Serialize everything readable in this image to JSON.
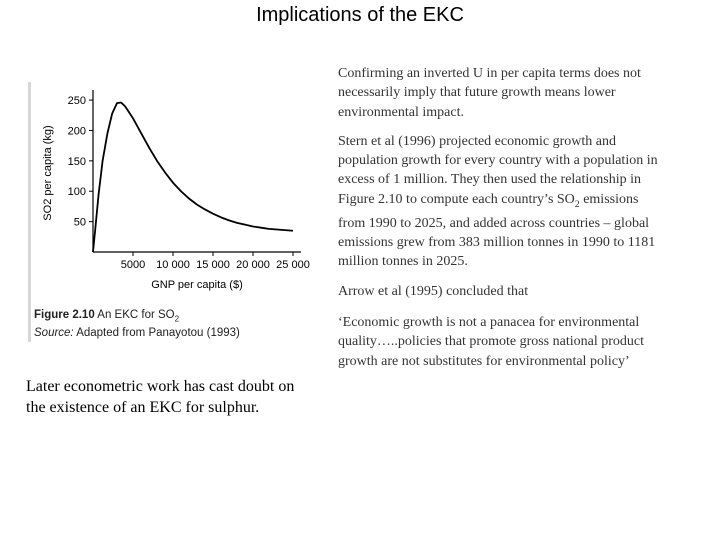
{
  "slide": {
    "title": "Implications of the EKC",
    "para1": "Confirming an inverted U in per capita terms does not necessarily imply that future growth means lower environmental impact.",
    "para2_a": "Stern et al (1996) projected economic growth and population growth for every country with a population in excess of 1 million. They then used the relationship in Figure 2.10 to compute each country’s SO",
    "para2_sub": "2",
    "para2_b": " emissions from 1990 to 2025, and added across countries – global emissions grew from 383 million tonnes in 1990 to 1181 million tonnes in 2025.",
    "para3": "Arrow et al (1995) concluded that",
    "quote": "‘Economic growth is not a panacea for environmental quality…..policies that promote gross national product growth are not substitutes for environmental policy’",
    "left_text": "Later econometric work has cast doubt on the existence of an EKC for sulphur."
  },
  "figure": {
    "caption_label": "Figure 2.10",
    "caption_title": "An EKC for SO",
    "caption_title_sub": "2",
    "source_label": "Source:",
    "source_text": "Adapted from Panayotou (1993)"
  },
  "chart_data": {
    "type": "line",
    "xlabel": "GNP per capita ($)",
    "ylabel": "SO2 per capita (kg)",
    "xlim": [
      0,
      26000
    ],
    "ylim": [
      0,
      260
    ],
    "x_ticks": [
      5000,
      10000,
      15000,
      20000,
      25000
    ],
    "x_tick_labels": [
      "5000",
      "10 000",
      "15 000",
      "20 000",
      "25 000"
    ],
    "y_ticks": [
      50,
      100,
      150,
      200,
      250
    ],
    "y_tick_labels": [
      "50",
      "100",
      "150",
      "200",
      "250"
    ],
    "series": [
      {
        "x": [
          0,
          300,
          700,
          1200,
          1800,
          2400,
          3000,
          3500,
          4000,
          5000,
          6000,
          7000,
          8000,
          9000,
          10000,
          11000,
          12000,
          13000,
          14000,
          15000,
          16000,
          17000,
          18000,
          19000,
          20000,
          21000,
          22000,
          23000,
          24000,
          25000
        ],
        "y": [
          0,
          40,
          95,
          150,
          195,
          228,
          245,
          246,
          240,
          220,
          196,
          172,
          150,
          131,
          114,
          100,
          88,
          78,
          70,
          63,
          57,
          52,
          48,
          45,
          42,
          40,
          38,
          37,
          36,
          35
        ]
      }
    ],
    "grid": false,
    "legend": "none"
  }
}
